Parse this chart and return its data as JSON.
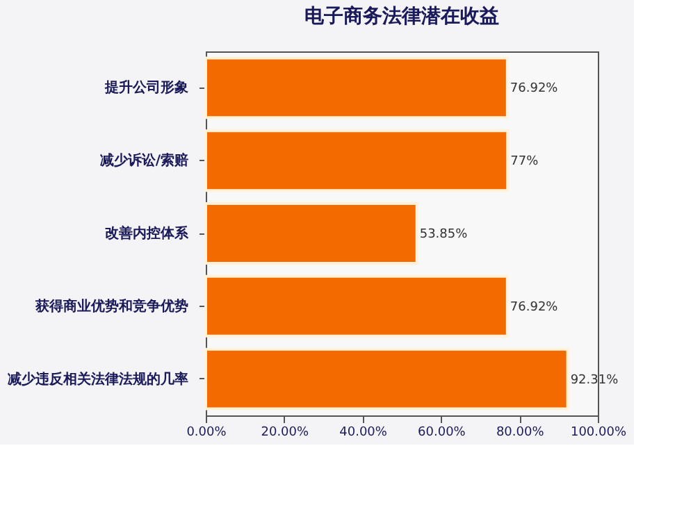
{
  "chart_data": {
    "type": "bar",
    "orientation": "horizontal",
    "title": "电子商务法律潜在收益",
    "categories": [
      "提升公司形象",
      "减少诉讼/索赔",
      "改善内控体系",
      "获得商业优势和竞争优势",
      "减少违反相关法律法规的几率"
    ],
    "values": [
      76.92,
      77,
      53.85,
      76.92,
      92.31
    ],
    "value_labels": [
      "76.92%",
      "77%",
      "53.85%",
      "76.92%",
      "92.31%"
    ],
    "color": "#f26a00",
    "xlim": [
      0,
      100
    ],
    "xticks": [
      {
        "value": 0,
        "label": "0.00%"
      },
      {
        "value": 20,
        "label": "20.00%"
      },
      {
        "value": 40,
        "label": "40.00%"
      },
      {
        "value": 60,
        "label": "60.00%"
      },
      {
        "value": 80,
        "label": "80.00%"
      },
      {
        "value": 100,
        "label": "100.00%"
      }
    ],
    "grid": false
  }
}
